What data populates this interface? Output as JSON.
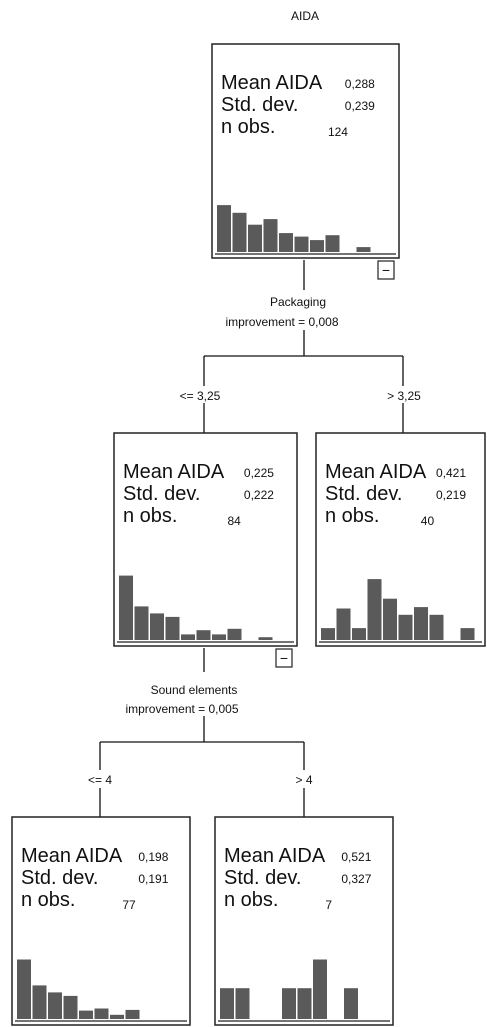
{
  "title": "AIDA",
  "labels": {
    "mean": "Mean AIDA",
    "std": "Std. dev.",
    "n": "n obs."
  },
  "collapse_symbol": "−",
  "nodes": [
    {
      "id": "root",
      "mean": "0,288",
      "std": "0,239",
      "n": "124",
      "collapse": true,
      "hist": [
        0.67,
        0.56,
        0.39,
        0.47,
        0.27,
        0.22,
        0.17,
        0.24,
        0,
        0.07
      ]
    },
    {
      "id": "n1",
      "mean": "0,225",
      "std": "0,222",
      "n": "84",
      "collapse": true,
      "hist": [
        0.92,
        0.48,
        0.38,
        0.33,
        0.08,
        0.14,
        0.08,
        0.16,
        0,
        0.04
      ]
    },
    {
      "id": "n2",
      "mean": "0,421",
      "std": "0,219",
      "n": "40",
      "collapse": false,
      "hist": [
        0.17,
        0.45,
        0.17,
        0.87,
        0.59,
        0.36,
        0.47,
        0.36,
        0,
        0.17
      ]
    },
    {
      "id": "n3",
      "mean": "0,198",
      "std": "0,191",
      "n": "77",
      "collapse": false,
      "hist": [
        0.85,
        0.48,
        0.38,
        0.33,
        0.12,
        0.15,
        0.06,
        0.13
      ]
    },
    {
      "id": "n4",
      "mean": "0,521",
      "std": "0,327",
      "n": "7",
      "collapse": false,
      "hist": [
        0.44,
        0.44,
        0,
        0,
        0.44,
        0.44,
        0.85,
        0,
        0.44
      ]
    }
  ],
  "splits": [
    {
      "id": "s1",
      "variable": "Packaging",
      "improvement": "improvement = 0,008",
      "left": "<= 3,25",
      "right": "> 3,25"
    },
    {
      "id": "s2",
      "variable": "Sound elements",
      "improvement": "improvement = 0,005",
      "left": "<= 4",
      "right": "> 4"
    }
  ],
  "colors": {
    "bar": "#5a5a5a",
    "border": "#222222",
    "background": "#ffffff"
  }
}
